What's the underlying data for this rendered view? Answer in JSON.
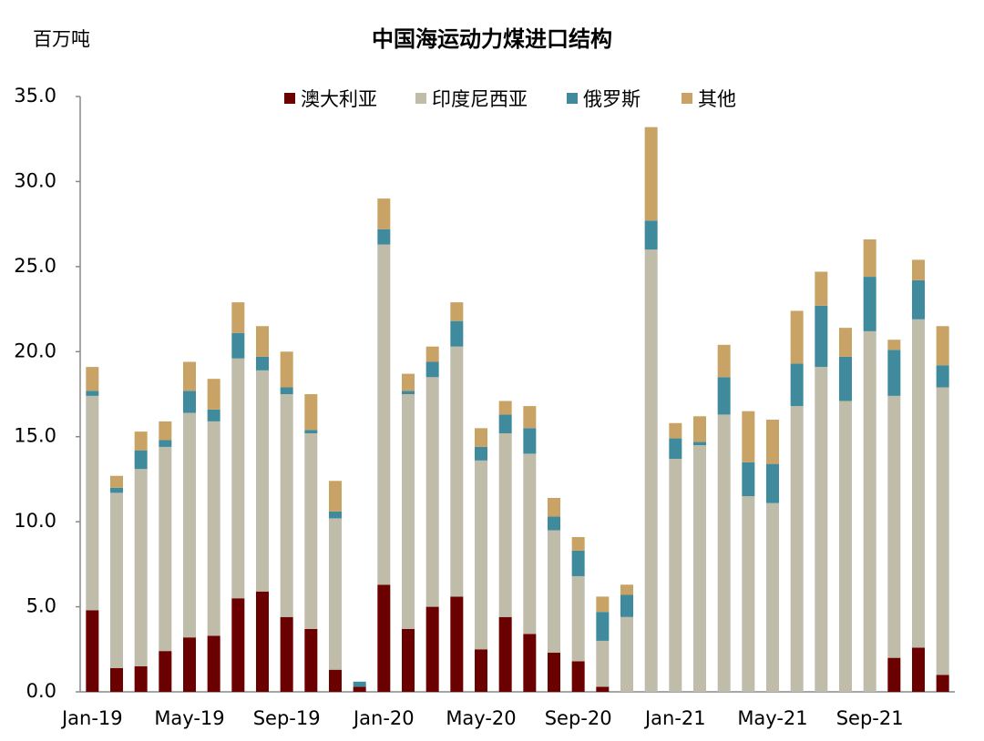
{
  "chart_data": {
    "type": "stacked_bar",
    "title": "中国海运动力煤进口结构",
    "y_axis_label": "百万吨",
    "categories": [
      "Jan-19",
      null,
      null,
      null,
      "May-19",
      null,
      null,
      null,
      "Sep-19",
      null,
      null,
      null,
      "Jan-20",
      null,
      null,
      null,
      "May-20",
      null,
      null,
      null,
      "Sep-20",
      null,
      null,
      null,
      "Jan-21",
      null,
      null,
      null,
      "May-21",
      null,
      null,
      null,
      "Sep-21",
      null,
      null,
      null
    ],
    "series": [
      {
        "name": "澳大利亚",
        "color": "#6b0000",
        "values": [
          4.8,
          1.4,
          1.5,
          2.4,
          3.2,
          3.3,
          5.5,
          5.9,
          4.4,
          3.7,
          1.3,
          0.3,
          6.3,
          3.7,
          5.0,
          5.6,
          2.5,
          4.4,
          3.4,
          2.3,
          1.8,
          0.3,
          0,
          0,
          0,
          0,
          0,
          0,
          0,
          0,
          0,
          0,
          0,
          2.0,
          2.6,
          1.0
        ]
      },
      {
        "name": "印度尼西亚",
        "color": "#bfbcaa",
        "values": [
          12.6,
          10.3,
          11.6,
          12.0,
          13.2,
          12.6,
          14.1,
          13.0,
          13.1,
          11.5,
          8.9,
          0,
          20.0,
          13.8,
          13.5,
          14.7,
          11.1,
          10.8,
          10.6,
          7.2,
          5.0,
          2.7,
          4.4,
          26.0,
          13.7,
          14.5,
          16.3,
          11.5,
          11.1,
          16.8,
          19.1,
          17.1,
          21.2,
          15.4,
          19.3,
          16.9
        ]
      },
      {
        "name": "俄罗斯",
        "color": "#3f8a9c",
        "values": [
          0.3,
          0.3,
          1.1,
          0.4,
          1.3,
          0.7,
          1.5,
          0.8,
          0.4,
          0.2,
          0.4,
          0.3,
          0.9,
          0.2,
          0.9,
          1.5,
          0.8,
          1.1,
          1.5,
          0.8,
          1.5,
          1.7,
          1.3,
          1.7,
          1.2,
          0.2,
          2.2,
          2.0,
          2.3,
          2.5,
          3.6,
          2.6,
          3.2,
          2.7,
          2.3,
          1.3
        ]
      },
      {
        "name": "其他",
        "color": "#c9a266",
        "values": [
          1.4,
          0.7,
          1.1,
          1.1,
          1.7,
          1.8,
          1.8,
          1.8,
          2.1,
          2.1,
          1.8,
          0,
          1.8,
          1.0,
          0.9,
          1.1,
          1.1,
          0.8,
          1.3,
          1.1,
          0.8,
          0.9,
          0.6,
          5.5,
          0.9,
          1.5,
          1.9,
          3.0,
          2.6,
          3.1,
          2.0,
          1.7,
          2.2,
          0.6,
          1.2,
          2.3
        ]
      }
    ],
    "ylim": [
      0,
      35
    ],
    "yticks": [
      {
        "value": 0,
        "label": "0.0"
      },
      {
        "value": 5,
        "label": "5.0"
      },
      {
        "value": 10,
        "label": "10.0"
      },
      {
        "value": 15,
        "label": "15.0"
      },
      {
        "value": 20,
        "label": "20.0"
      },
      {
        "value": 25,
        "label": "25.0"
      },
      {
        "value": 30,
        "label": "30.0"
      },
      {
        "value": 35,
        "label": "35.0"
      }
    ],
    "grid": false
  }
}
